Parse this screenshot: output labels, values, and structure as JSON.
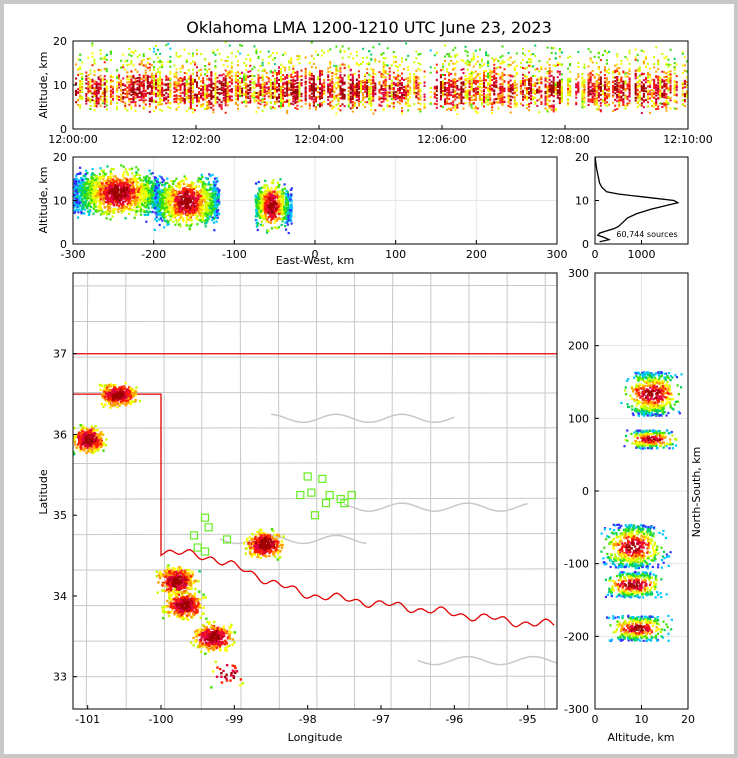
{
  "title": "Oklahoma LMA 1200-1210 UTC June 23, 2023",
  "colors": {
    "lightning_palette": [
      "#3030ff",
      "#00c8ff",
      "#00d060",
      "#40e000",
      "#c8ff00",
      "#ffff00",
      "#ffa000",
      "#ff2000",
      "#e00040",
      "#a00000"
    ],
    "state_border": "#e00000",
    "county_lines": "#c8c8c8",
    "stations": "#66ee22"
  },
  "chart_data": [
    {
      "id": "altitude-time",
      "type": "scatter",
      "xlabel": "",
      "ylabel": "Altitude, km",
      "xlim_minutes": [
        0,
        10
      ],
      "x_tick_labels": [
        "12:00:00",
        "12:02:00",
        "12:04:00",
        "12:06:00",
        "12:08:00",
        "12:10:00"
      ],
      "ylim": [
        0,
        20
      ],
      "y_ticks": [
        0,
        10,
        20
      ],
      "description_of_marks": "continuous band of VHF sources between 1 and 20 km altitude across the whole 10 minute window, densest at 6-12 km"
    },
    {
      "id": "east-west-altitude",
      "type": "scatter",
      "xlabel": "East-West, km",
      "ylabel": "Altitude, km",
      "xlim": [
        -300,
        300
      ],
      "x_ticks": [
        -300,
        -200,
        -100,
        0,
        100,
        200,
        300
      ],
      "ylim": [
        0,
        20
      ],
      "y_ticks": [
        0,
        10,
        20
      ],
      "clusters": [
        {
          "x_range": [
            -300,
            -195
          ],
          "alt_range": [
            5,
            20
          ],
          "peak_x": -245,
          "peak_alt": 12
        },
        {
          "x_range": [
            -200,
            -120
          ],
          "alt_range": [
            3,
            19
          ],
          "peak_x": -160,
          "peak_alt": 10
        },
        {
          "x_range": [
            -75,
            -30
          ],
          "alt_range": [
            1,
            16
          ],
          "peak_x": -55,
          "peak_alt": 9
        }
      ]
    },
    {
      "id": "altitude-histogram",
      "type": "line",
      "xlim": [
        0,
        2000
      ],
      "x_ticks": [
        0,
        1000
      ],
      "ylim": [
        0,
        20
      ],
      "y_ticks": [
        0,
        10,
        20
      ],
      "annotation": "60,744 sources",
      "points": [
        [
          100,
          0.5
        ],
        [
          300,
          1
        ],
        [
          200,
          1.5
        ],
        [
          60,
          2
        ],
        [
          100,
          2.5
        ],
        [
          250,
          3
        ],
        [
          400,
          3.5
        ],
        [
          500,
          4
        ],
        [
          600,
          5
        ],
        [
          700,
          6
        ],
        [
          900,
          7
        ],
        [
          1200,
          8
        ],
        [
          1600,
          9
        ],
        [
          1780,
          9.5
        ],
        [
          1700,
          10
        ],
        [
          1300,
          10.5
        ],
        [
          900,
          11
        ],
        [
          500,
          11.5
        ],
        [
          250,
          12
        ],
        [
          150,
          13
        ],
        [
          100,
          14
        ],
        [
          80,
          15
        ],
        [
          60,
          16
        ],
        [
          40,
          17
        ],
        [
          25,
          18
        ],
        [
          12,
          19
        ],
        [
          5,
          20
        ]
      ]
    },
    {
      "id": "plan-view",
      "type": "scatter",
      "xlabel": "Longitude",
      "ylabel": "Latitude",
      "xlim": [
        -101.2,
        -94.6
      ],
      "x_ticks": [
        -101,
        -100,
        -99,
        -98,
        -97,
        -96,
        -95
      ],
      "ylim": [
        32.6,
        38.0
      ],
      "y_ticks": [
        33,
        34,
        35,
        36,
        37
      ],
      "cells": [
        {
          "lon": -100.6,
          "lat": 36.5
        },
        {
          "lon": -101.0,
          "lat": 35.95
        },
        {
          "lon": -99.8,
          "lat": 34.2
        },
        {
          "lon": -99.7,
          "lat": 33.9
        },
        {
          "lon": -99.3,
          "lat": 33.5
        },
        {
          "lon": -98.6,
          "lat": 34.65
        },
        {
          "lon": -99.1,
          "lat": 33.05
        }
      ],
      "stations": [
        [
          -98.0,
          35.48
        ],
        [
          -97.8,
          35.45
        ],
        [
          -98.1,
          35.25
        ],
        [
          -97.95,
          35.28
        ],
        [
          -97.7,
          35.25
        ],
        [
          -97.55,
          35.2
        ],
        [
          -97.4,
          35.25
        ],
        [
          -97.75,
          35.15
        ],
        [
          -97.5,
          35.15
        ],
        [
          -97.9,
          35.0
        ],
        [
          -99.4,
          34.97
        ],
        [
          -99.35,
          34.85
        ],
        [
          -99.55,
          34.75
        ],
        [
          -99.1,
          34.7
        ],
        [
          -99.5,
          34.6
        ],
        [
          -99.4,
          34.55
        ]
      ]
    },
    {
      "id": "altitude-north-south",
      "type": "scatter",
      "xlabel": "Altitude, km",
      "ylabel": "North-South, km",
      "xlim": [
        0,
        20
      ],
      "x_ticks": [
        0,
        10,
        20
      ],
      "ylim": [
        -300,
        300
      ],
      "y_ticks": [
        -300,
        -200,
        -100,
        0,
        100,
        200,
        300
      ],
      "clusters": [
        {
          "ns_range": [
            105,
            165
          ],
          "alt_range": [
            5,
            20
          ],
          "peak_alt": 12
        },
        {
          "ns_range": [
            60,
            85
          ],
          "alt_range": [
            6,
            20
          ],
          "peak_alt": 12
        },
        {
          "ns_range": [
            -105,
            -45
          ],
          "alt_range": [
            1,
            20
          ],
          "peak_alt": 8
        },
        {
          "ns_range": [
            -145,
            -110
          ],
          "alt_range": [
            2,
            18
          ],
          "peak_alt": 8
        },
        {
          "ns_range": [
            -205,
            -170
          ],
          "alt_range": [
            2,
            18
          ],
          "peak_alt": 9
        }
      ]
    }
  ]
}
